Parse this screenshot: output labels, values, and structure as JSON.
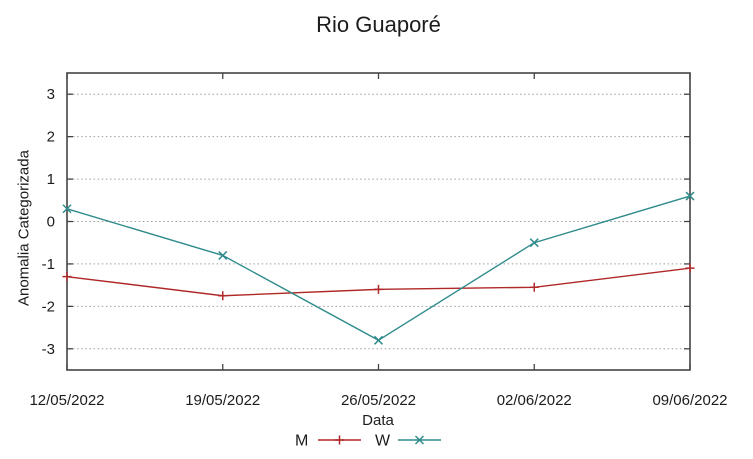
{
  "chart_data": {
    "type": "line",
    "title": "Rio Guaporé",
    "xlabel": "Data",
    "ylabel": "Anomalia Categorizada",
    "categories": [
      "12/05/2022",
      "19/05/2022",
      "26/05/2022",
      "02/06/2022",
      "09/06/2022"
    ],
    "series": [
      {
        "name": "M",
        "color": "#b02828",
        "marker": "plus",
        "values": [
          -1.3,
          -1.75,
          -1.6,
          -1.55,
          -1.1
        ]
      },
      {
        "name": "W",
        "color": "#2f8b8b",
        "marker": "x",
        "values": [
          0.3,
          -0.8,
          -2.8,
          -0.5,
          0.6
        ]
      }
    ],
    "ylim": [
      -3.5,
      3.5
    ],
    "yticks": [
      3,
      2,
      1,
      0,
      -1,
      -2,
      -3
    ],
    "grid": "horizontal-dotted",
    "legend_position": "below-center"
  },
  "colors": {
    "axis": "#444444",
    "grid": "#9e9e9e",
    "text": "#1c1c1c",
    "background": "#ffffff"
  }
}
